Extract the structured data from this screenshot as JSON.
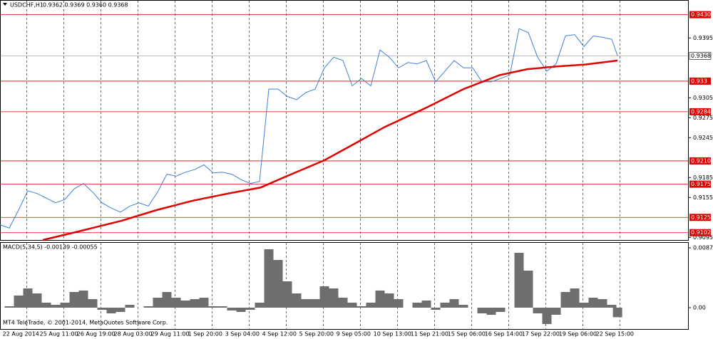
{
  "chart_data": [
    {
      "type": "line",
      "title": "USDCHF,H1",
      "subtitle": "0.9362 0.9369 0.9360 0.9368",
      "annotation": "MT4 TeleTrade, © 2001-2014, MetaQuotes Software Corp.",
      "xlim": [
        0,
        540
      ],
      "ylim": [
        0.9091,
        0.9451
      ],
      "yticks": [
        0.9395,
        0.9305,
        0.9275,
        0.9245,
        0.9185,
        0.9155,
        0.9095
      ],
      "levels": [
        {
          "value": 0.943,
          "label": "0.9430"
        },
        0.933,
        0.9284,
        {
          "value": 0.921,
          "label": "0.9210"
        },
        0.9175,
        0.9125,
        0.9102
      ],
      "current": 0.9368,
      "series": [
        {
          "color": "#3f7fd8",
          "x": [
            0,
            8,
            16,
            24,
            32,
            40,
            48,
            56,
            64,
            72,
            80,
            88,
            96,
            104,
            112,
            120,
            128,
            136,
            144,
            152,
            160,
            168,
            176,
            184,
            192,
            200,
            208,
            216,
            224,
            232,
            240,
            248,
            256,
            264,
            272,
            280,
            288,
            296,
            304,
            312,
            320,
            328,
            336,
            344,
            352,
            360,
            368,
            376,
            384,
            392,
            400,
            408,
            416,
            424,
            432,
            440,
            448,
            456,
            464,
            472,
            480,
            488,
            496,
            504,
            512,
            520,
            528,
            533
          ],
          "values": [
            0.9114,
            0.9109,
            0.9136,
            0.9165,
            0.9161,
            0.9154,
            0.9147,
            0.9152,
            0.9168,
            0.9176,
            0.9163,
            0.9147,
            0.9139,
            0.9133,
            0.9142,
            0.9147,
            0.9142,
            0.9163,
            0.919,
            0.9187,
            0.9193,
            0.9197,
            0.9204,
            0.9192,
            0.9193,
            0.919,
            0.9182,
            0.9176,
            0.9179,
            0.9318,
            0.9318,
            0.9307,
            0.9302,
            0.9313,
            0.9318,
            0.935,
            0.9366,
            0.9361,
            0.9323,
            0.9334,
            0.9323,
            0.9377,
            0.9366,
            0.935,
            0.9358,
            0.9356,
            0.9361,
            0.9329,
            0.9345,
            0.9361,
            0.935,
            0.935,
            0.9329,
            0.9329,
            0.9334,
            0.9339,
            0.9409,
            0.9403,
            0.9366,
            0.9345,
            0.9356,
            0.9398,
            0.94,
            0.9382,
            0.9398,
            0.9396,
            0.9393,
            0.9368
          ]
        },
        {
          "color": "#e00000",
          "x": [
            37,
            68,
            105,
            135,
            166,
            197,
            225,
            246,
            280,
            302,
            332,
            369,
            400,
            431,
            455,
            480,
            505,
            533
          ],
          "values": [
            0.9091,
            0.9104,
            0.912,
            0.9136,
            0.915,
            0.9161,
            0.917,
            0.9186,
            0.9211,
            0.9232,
            0.9261,
            0.9291,
            0.9318,
            0.9339,
            0.9348,
            0.9352,
            0.9355,
            0.9361
          ]
        }
      ]
    },
    {
      "type": "bar",
      "title": "MACD(5,34,5) -0.00139 -0.00055",
      "color": "#6e6e6e",
      "xlim": [
        0,
        540
      ],
      "ylim": [
        -0.00311,
        0.00943
      ],
      "yticks": [
        0.0087,
        {
          "value": 0,
          "label": "0.00"
        }
      ],
      "xticks": [
        {
          "value": 1,
          "label": "22 Aug 2014"
        },
        {
          "value": 33,
          "label": "25 Aug 11:00"
        },
        {
          "value": 65,
          "label": "26 Aug 19:00"
        },
        {
          "value": 97,
          "label": "28 Aug 03:00"
        },
        {
          "value": 129,
          "label": "29 Aug 11:00"
        },
        {
          "value": 161,
          "label": "1 Sep 20:00"
        },
        {
          "value": 193,
          "label": "3 Sep 04:00"
        },
        {
          "value": 225,
          "label": "4 Sep 12:00"
        },
        {
          "value": 257,
          "label": "5 Sep 20:00"
        },
        {
          "value": 289,
          "label": "9 Sep 05:00"
        },
        {
          "value": 321,
          "label": "10 Sep 13:00"
        },
        {
          "value": 353,
          "label": "11 Sep 21:00"
        },
        {
          "value": 385,
          "label": "15 Sep 06:00"
        },
        {
          "value": 417,
          "label": "16 Sep 14:00"
        },
        {
          "value": 449,
          "label": "17 Sep 22:00"
        },
        {
          "value": 481,
          "label": "19 Sep 06:00"
        },
        {
          "value": 513,
          "label": "22 Sep 15:00"
        }
      ],
      "x": [
        0,
        8,
        16,
        24,
        32,
        40,
        48,
        56,
        64,
        72,
        80,
        88,
        96,
        104,
        112,
        120,
        128,
        136,
        144,
        152,
        160,
        168,
        176,
        184,
        192,
        200,
        208,
        216,
        224,
        232,
        240,
        248,
        256,
        264,
        272,
        280,
        288,
        296,
        304,
        312,
        320,
        328,
        336,
        344,
        352,
        360,
        368,
        376,
        384,
        392,
        400,
        408,
        416,
        424,
        432,
        440,
        448,
        456,
        464,
        472,
        480,
        488,
        496,
        504,
        512,
        520,
        528,
        533
      ],
      "values": [
        0,
        0.00021,
        0.00176,
        0.0028,
        0.00207,
        0.00073,
        0.00041,
        0.00073,
        0.00228,
        0.00249,
        0.00124,
        -0.00031,
        -0.00083,
        -0.00062,
        0.00041,
        0,
        0.00021,
        0.00145,
        0.00228,
        0.00145,
        0.00104,
        0.00124,
        0.00145,
        0.00021,
        0.00021,
        -0.00041,
        -0.00062,
        -0.00031,
        0.00073,
        0.0085,
        0.00694,
        0.00383,
        0.00207,
        0.00124,
        0.00124,
        0.00311,
        0.0028,
        0.00145,
        0.00073,
        0.00021,
        0.00073,
        0.00249,
        0.00207,
        0.00124,
        0,
        0.00073,
        0.00104,
        -0.00031,
        0.00073,
        0.00124,
        0.00041,
        0,
        -0.00083,
        -0.00104,
        -0.00062,
        0,
        0.00798,
        0.00539,
        -0.00083,
        -0.00238,
        -0.00104,
        0.00228,
        0.0028,
        0.00073,
        0.00145,
        0.00124,
        0.00041,
        -0.00139
      ]
    }
  ]
}
